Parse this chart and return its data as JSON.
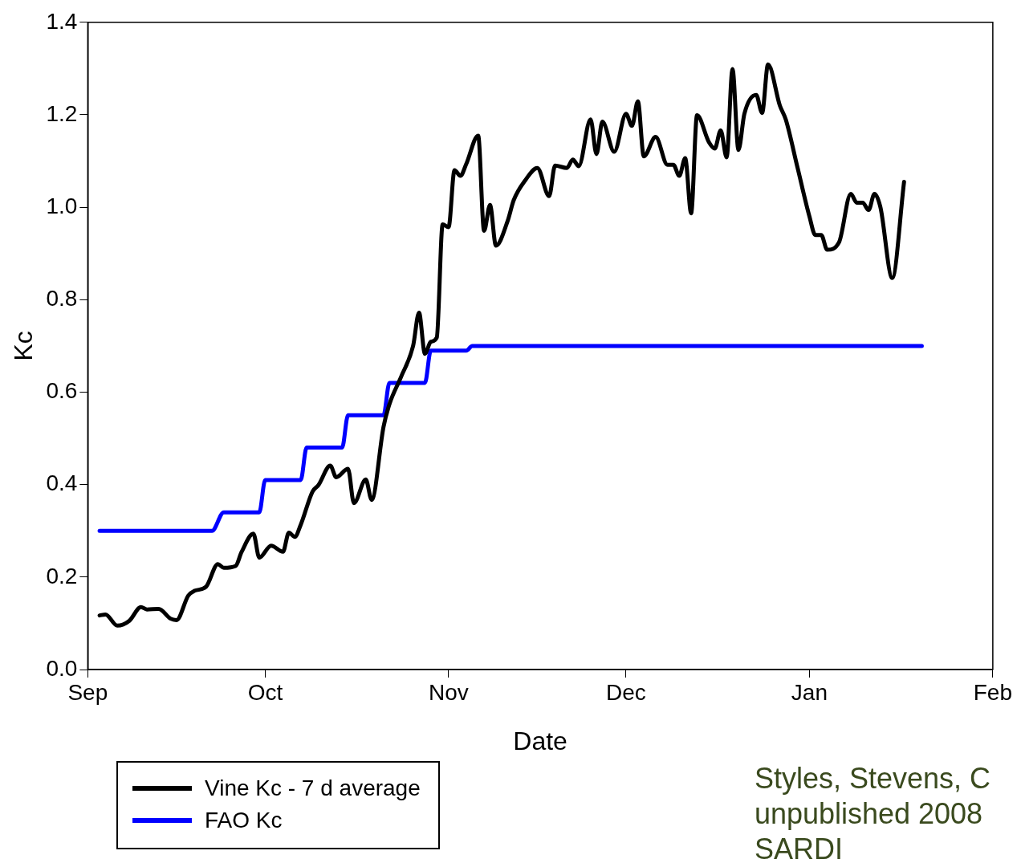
{
  "chart_data": {
    "type": "line",
    "xlabel": "Date",
    "ylabel": "Kc",
    "xlim": [
      "2007-09-01",
      "2008-02-01"
    ],
    "xticks": [
      {
        "value": "2007-09-01",
        "label": "Sep"
      },
      {
        "value": "2007-10-01",
        "label": "Oct"
      },
      {
        "value": "2007-11-01",
        "label": "Nov"
      },
      {
        "value": "2007-12-01",
        "label": "Dec"
      },
      {
        "value": "2008-01-01",
        "label": "Jan"
      },
      {
        "value": "2008-02-01",
        "label": "Feb"
      }
    ],
    "ylim": [
      0,
      1.4
    ],
    "yticks": [
      {
        "value": 0,
        "label": "0.0"
      },
      {
        "value": 0.2,
        "label": "0.2"
      },
      {
        "value": 0.4,
        "label": "0.4"
      },
      {
        "value": 0.6,
        "label": "0.6"
      },
      {
        "value": 0.8,
        "label": "0.8"
      },
      {
        "value": 1.0,
        "label": "1.0"
      },
      {
        "value": 1.2,
        "label": "1.2"
      },
      {
        "value": 1.4,
        "label": "1.4"
      }
    ],
    "grid": false,
    "legend": "bottom left",
    "marker": "none",
    "line_style": "solid",
    "annotations": [
      "Styles, Stevens, C",
      "unpublished 2008",
      "SARDI"
    ],
    "series": [
      {
        "name": "Vine Kc - 7 d average",
        "color": "#000000",
        "x": [
          "2007-09-03",
          "2007-09-04",
          "2007-09-06",
          "2007-09-08",
          "2007-09-10",
          "2007-09-11",
          "2007-09-13",
          "2007-09-15",
          "2007-09-16",
          "2007-09-18",
          "2007-09-19",
          "2007-09-21",
          "2007-09-23",
          "2007-09-24",
          "2007-09-26",
          "2007-09-27",
          "2007-09-29",
          "2007-09-30",
          "2007-10-02",
          "2007-10-04",
          "2007-10-05",
          "2007-10-06",
          "2007-10-07",
          "2007-10-09",
          "2007-10-10",
          "2007-10-12",
          "2007-10-13",
          "2007-10-15",
          "2007-10-16",
          "2007-10-18",
          "2007-10-19",
          "2007-10-21",
          "2007-10-22",
          "2007-10-24",
          "2007-10-26",
          "2007-10-27",
          "2007-10-28",
          "2007-10-29",
          "2007-10-30",
          "2007-10-31",
          "2007-11-01",
          "2007-11-02",
          "2007-11-03",
          "2007-11-04",
          "2007-11-06",
          "2007-11-07",
          "2007-11-08",
          "2007-11-09",
          "2007-11-11",
          "2007-11-12",
          "2007-11-14",
          "2007-11-16",
          "2007-11-18",
          "2007-11-19",
          "2007-11-21",
          "2007-11-22",
          "2007-11-23",
          "2007-11-25",
          "2007-11-26",
          "2007-11-27",
          "2007-11-29",
          "2007-12-01",
          "2007-12-02",
          "2007-12-03",
          "2007-12-04",
          "2007-12-06",
          "2007-12-08",
          "2007-12-09",
          "2007-12-10",
          "2007-12-11",
          "2007-12-12",
          "2007-12-13",
          "2007-12-15",
          "2007-12-16",
          "2007-12-17",
          "2007-12-18",
          "2007-12-19",
          "2007-12-20",
          "2007-12-21",
          "2007-12-23",
          "2007-12-24",
          "2007-12-25",
          "2007-12-27",
          "2007-12-28",
          "2007-12-30",
          "2008-01-01",
          "2008-01-02",
          "2008-01-03",
          "2008-01-04",
          "2008-01-06",
          "2008-01-08",
          "2008-01-09",
          "2008-01-10",
          "2008-01-11",
          "2008-01-12",
          "2008-01-13",
          "2008-01-15",
          "2008-01-17"
        ],
        "values": [
          0.117,
          0.119,
          0.095,
          0.105,
          0.135,
          0.13,
          0.131,
          0.11,
          0.107,
          0.16,
          0.17,
          0.179,
          0.228,
          0.22,
          0.224,
          0.254,
          0.294,
          0.242,
          0.268,
          0.255,
          0.296,
          0.287,
          0.313,
          0.385,
          0.399,
          0.441,
          0.416,
          0.434,
          0.36,
          0.411,
          0.367,
          0.525,
          0.574,
          0.634,
          0.7,
          0.772,
          0.683,
          0.709,
          0.718,
          0.963,
          0.957,
          1.08,
          1.068,
          1.094,
          1.155,
          0.949,
          1.005,
          0.917,
          0.971,
          1.015,
          1.059,
          1.085,
          1.024,
          1.09,
          1.085,
          1.103,
          1.089,
          1.19,
          1.115,
          1.185,
          1.12,
          1.202,
          1.176,
          1.229,
          1.11,
          1.152,
          1.092,
          1.092,
          1.068,
          1.106,
          0.987,
          1.199,
          1.141,
          1.127,
          1.166,
          1.108,
          1.299,
          1.124,
          1.202,
          1.243,
          1.204,
          1.309,
          1.22,
          1.19,
          1.085,
          0.98,
          0.94,
          0.94,
          0.908,
          0.924,
          1.029,
          1.01,
          1.01,
          0.994,
          1.029,
          1.0,
          0.847,
          1.055
        ]
      },
      {
        "name": "FAO Kc",
        "color": "#0000ff",
        "x": [
          "2007-09-03",
          "2007-09-22",
          "2007-09-24",
          "2007-09-30",
          "2007-10-01",
          "2007-10-07",
          "2007-10-08",
          "2007-10-14",
          "2007-10-15",
          "2007-10-21",
          "2007-10-22",
          "2007-10-28",
          "2007-10-29",
          "2007-11-04",
          "2007-11-05",
          "2008-01-20"
        ],
        "values": [
          0.3,
          0.3,
          0.34,
          0.34,
          0.41,
          0.41,
          0.48,
          0.48,
          0.55,
          0.55,
          0.62,
          0.62,
          0.69,
          0.69,
          0.7,
          0.7
        ]
      }
    ]
  }
}
